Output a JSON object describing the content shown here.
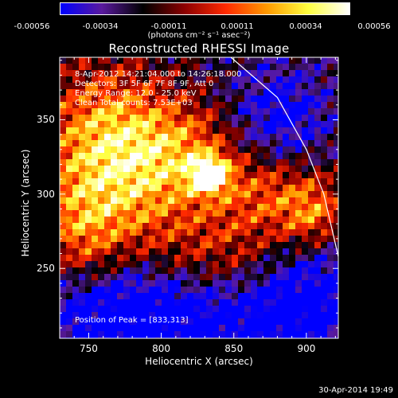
{
  "colorbar": {
    "tick_labels": [
      "-0.00056",
      "-0.00034",
      "-0.00011",
      "0.00011",
      "0.00034",
      "0.00056"
    ],
    "units": "(photons cm⁻² s⁻¹ asec⁻²)",
    "colormap": [
      "#0000ff",
      "#5a1a9e",
      "#000000",
      "#8b0000",
      "#ff2a00",
      "#ff9a00",
      "#ffff40",
      "#ffffff"
    ]
  },
  "title": "Reconstructed RHESSI Image",
  "info_lines": [
    " 8-Apr-2012 14:21:04.000 to 14:26:18.000",
    "Detectors: 3F 5F 6F 7F 8F 9F, Att 0",
    "Energy Range: 12.0 - 25.0 keV",
    "Clean     Total counts: 7.53E+03"
  ],
  "peak_text": "Position of Peak = [833,313]",
  "timestamp": "30-Apr-2014 19:49",
  "chart_data": {
    "type": "heatmap",
    "title": "Reconstructed RHESSI Image",
    "xlabel": "Heliocentric X (arcsec)",
    "ylabel": "Heliocentric Y (arcsec)",
    "xlim": [
      730,
      922
    ],
    "ylim": [
      203,
      392
    ],
    "xticks": [
      750,
      800,
      850,
      900
    ],
    "yticks": [
      250,
      300,
      350
    ],
    "value_range": [
      -0.00056,
      0.00056
    ],
    "peak": {
      "x": 833,
      "y": 313
    },
    "limb_curve": [
      [
        848,
        392
      ],
      [
        880,
        365
      ],
      [
        900,
        330
      ],
      [
        912,
        300
      ],
      [
        922,
        258
      ]
    ]
  }
}
